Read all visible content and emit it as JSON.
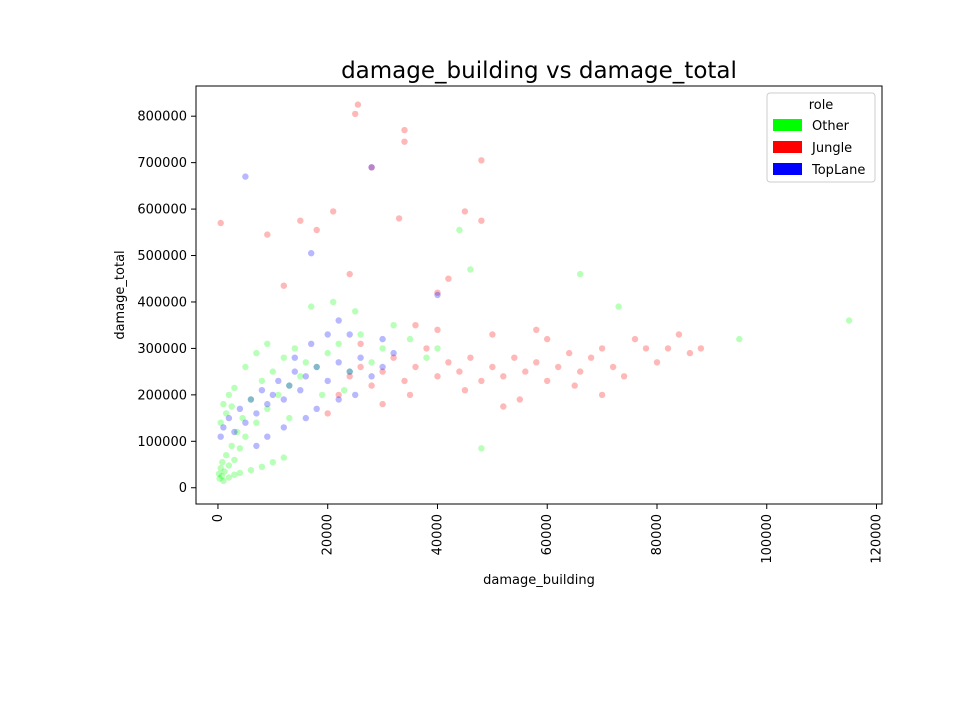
{
  "chart_data": {
    "type": "scatter",
    "title": "damage_building vs damage_total",
    "xlabel": "damage_building",
    "ylabel": "damage_total",
    "xlim": [
      -4000,
      121000
    ],
    "ylim": [
      -35000,
      865000
    ],
    "xticks": [
      0,
      20000,
      40000,
      60000,
      80000,
      100000,
      120000
    ],
    "xtick_labels": [
      "0",
      "20000",
      "40000",
      "60000",
      "80000",
      "100000",
      "120000"
    ],
    "yticks": [
      0,
      100000,
      200000,
      300000,
      400000,
      500000,
      600000,
      700000,
      800000
    ],
    "ytick_labels": [
      "0",
      "100000",
      "200000",
      "300000",
      "400000",
      "500000",
      "600000",
      "700000",
      "800000"
    ],
    "grid": false,
    "legend": {
      "title": "role",
      "placement": "top-right"
    },
    "series": [
      {
        "name": "Other",
        "color": "#00ff00",
        "points": [
          [
            200,
            30000
          ],
          [
            500,
            42000
          ],
          [
            800,
            55000
          ],
          [
            1200,
            35000
          ],
          [
            1500,
            70000
          ],
          [
            2000,
            48000
          ],
          [
            2500,
            90000
          ],
          [
            3000,
            60000
          ],
          [
            3500,
            120000
          ],
          [
            4000,
            85000
          ],
          [
            4500,
            150000
          ],
          [
            5000,
            110000
          ],
          [
            500,
            140000
          ],
          [
            1000,
            180000
          ],
          [
            1500,
            160000
          ],
          [
            2000,
            200000
          ],
          [
            2500,
            175000
          ],
          [
            3000,
            215000
          ],
          [
            6000,
            190000
          ],
          [
            7000,
            140000
          ],
          [
            8000,
            230000
          ],
          [
            9000,
            170000
          ],
          [
            10000,
            250000
          ],
          [
            11000,
            200000
          ],
          [
            12000,
            280000
          ],
          [
            13000,
            220000
          ],
          [
            14000,
            300000
          ],
          [
            15000,
            240000
          ],
          [
            16000,
            270000
          ],
          [
            18000,
            260000
          ],
          [
            20000,
            290000
          ],
          [
            22000,
            310000
          ],
          [
            24000,
            250000
          ],
          [
            26000,
            330000
          ],
          [
            28000,
            270000
          ],
          [
            30000,
            300000
          ],
          [
            32000,
            350000
          ],
          [
            35000,
            320000
          ],
          [
            38000,
            280000
          ],
          [
            40000,
            300000
          ],
          [
            44000,
            555000
          ],
          [
            46000,
            470000
          ],
          [
            48000,
            85000
          ],
          [
            66000,
            460000
          ],
          [
            73000,
            390000
          ],
          [
            95000,
            320000
          ],
          [
            115000,
            360000
          ],
          [
            300,
            20000
          ],
          [
            700,
            25000
          ],
          [
            1000,
            15000
          ],
          [
            2000,
            22000
          ],
          [
            3000,
            28000
          ],
          [
            4000,
            32000
          ],
          [
            6000,
            38000
          ],
          [
            8000,
            45000
          ],
          [
            10000,
            55000
          ],
          [
            12000,
            65000
          ],
          [
            5000,
            260000
          ],
          [
            7000,
            290000
          ],
          [
            9000,
            310000
          ],
          [
            17000,
            390000
          ],
          [
            21000,
            400000
          ],
          [
            25000,
            380000
          ],
          [
            13000,
            150000
          ],
          [
            19000,
            200000
          ],
          [
            23000,
            210000
          ]
        ]
      },
      {
        "name": "Jungle",
        "color": "#ff0000",
        "points": [
          [
            500,
            570000
          ],
          [
            9000,
            545000
          ],
          [
            12000,
            435000
          ],
          [
            15000,
            575000
          ],
          [
            18000,
            555000
          ],
          [
            21000,
            595000
          ],
          [
            24000,
            460000
          ],
          [
            25000,
            805000
          ],
          [
            25500,
            825000
          ],
          [
            28000,
            690000
          ],
          [
            33000,
            580000
          ],
          [
            34000,
            770000
          ],
          [
            34000,
            745000
          ],
          [
            45000,
            595000
          ],
          [
            48000,
            705000
          ],
          [
            48000,
            575000
          ],
          [
            42000,
            450000
          ],
          [
            40000,
            420000
          ],
          [
            22000,
            200000
          ],
          [
            24000,
            240000
          ],
          [
            26000,
            260000
          ],
          [
            28000,
            220000
          ],
          [
            30000,
            250000
          ],
          [
            32000,
            280000
          ],
          [
            34000,
            230000
          ],
          [
            36000,
            260000
          ],
          [
            38000,
            300000
          ],
          [
            40000,
            240000
          ],
          [
            42000,
            270000
          ],
          [
            44000,
            250000
          ],
          [
            46000,
            280000
          ],
          [
            48000,
            230000
          ],
          [
            50000,
            260000
          ],
          [
            52000,
            240000
          ],
          [
            54000,
            280000
          ],
          [
            56000,
            250000
          ],
          [
            58000,
            270000
          ],
          [
            60000,
            230000
          ],
          [
            62000,
            260000
          ],
          [
            64000,
            290000
          ],
          [
            66000,
            250000
          ],
          [
            68000,
            280000
          ],
          [
            70000,
            300000
          ],
          [
            72000,
            260000
          ],
          [
            74000,
            240000
          ],
          [
            76000,
            320000
          ],
          [
            78000,
            300000
          ],
          [
            80000,
            270000
          ],
          [
            82000,
            300000
          ],
          [
            84000,
            330000
          ],
          [
            86000,
            290000
          ],
          [
            88000,
            300000
          ],
          [
            30000,
            180000
          ],
          [
            35000,
            200000
          ],
          [
            45000,
            210000
          ],
          [
            55000,
            190000
          ],
          [
            65000,
            220000
          ],
          [
            40000,
            340000
          ],
          [
            50000,
            330000
          ],
          [
            60000,
            320000
          ],
          [
            20000,
            160000
          ],
          [
            26000,
            310000
          ],
          [
            36000,
            350000
          ],
          [
            52000,
            175000
          ],
          [
            58000,
            340000
          ],
          [
            70000,
            200000
          ]
        ]
      },
      {
        "name": "TopLane",
        "color": "#0000ff",
        "points": [
          [
            5000,
            670000
          ],
          [
            17000,
            505000
          ],
          [
            28000,
            690000
          ],
          [
            40000,
            415000
          ],
          [
            20000,
            330000
          ],
          [
            22000,
            360000
          ],
          [
            500,
            110000
          ],
          [
            1000,
            130000
          ],
          [
            2000,
            150000
          ],
          [
            3000,
            120000
          ],
          [
            4000,
            170000
          ],
          [
            5000,
            140000
          ],
          [
            6000,
            190000
          ],
          [
            7000,
            160000
          ],
          [
            8000,
            210000
          ],
          [
            9000,
            180000
          ],
          [
            10000,
            200000
          ],
          [
            11000,
            230000
          ],
          [
            12000,
            190000
          ],
          [
            13000,
            220000
          ],
          [
            14000,
            250000
          ],
          [
            15000,
            210000
          ],
          [
            16000,
            240000
          ],
          [
            18000,
            260000
          ],
          [
            20000,
            230000
          ],
          [
            22000,
            270000
          ],
          [
            24000,
            250000
          ],
          [
            26000,
            280000
          ],
          [
            28000,
            240000
          ],
          [
            30000,
            260000
          ],
          [
            32000,
            290000
          ],
          [
            16000,
            150000
          ],
          [
            18000,
            170000
          ],
          [
            22000,
            190000
          ],
          [
            25000,
            200000
          ],
          [
            12000,
            130000
          ],
          [
            9000,
            110000
          ],
          [
            7000,
            90000
          ],
          [
            14000,
            280000
          ],
          [
            17000,
            310000
          ],
          [
            24000,
            330000
          ],
          [
            30000,
            320000
          ]
        ]
      }
    ]
  }
}
